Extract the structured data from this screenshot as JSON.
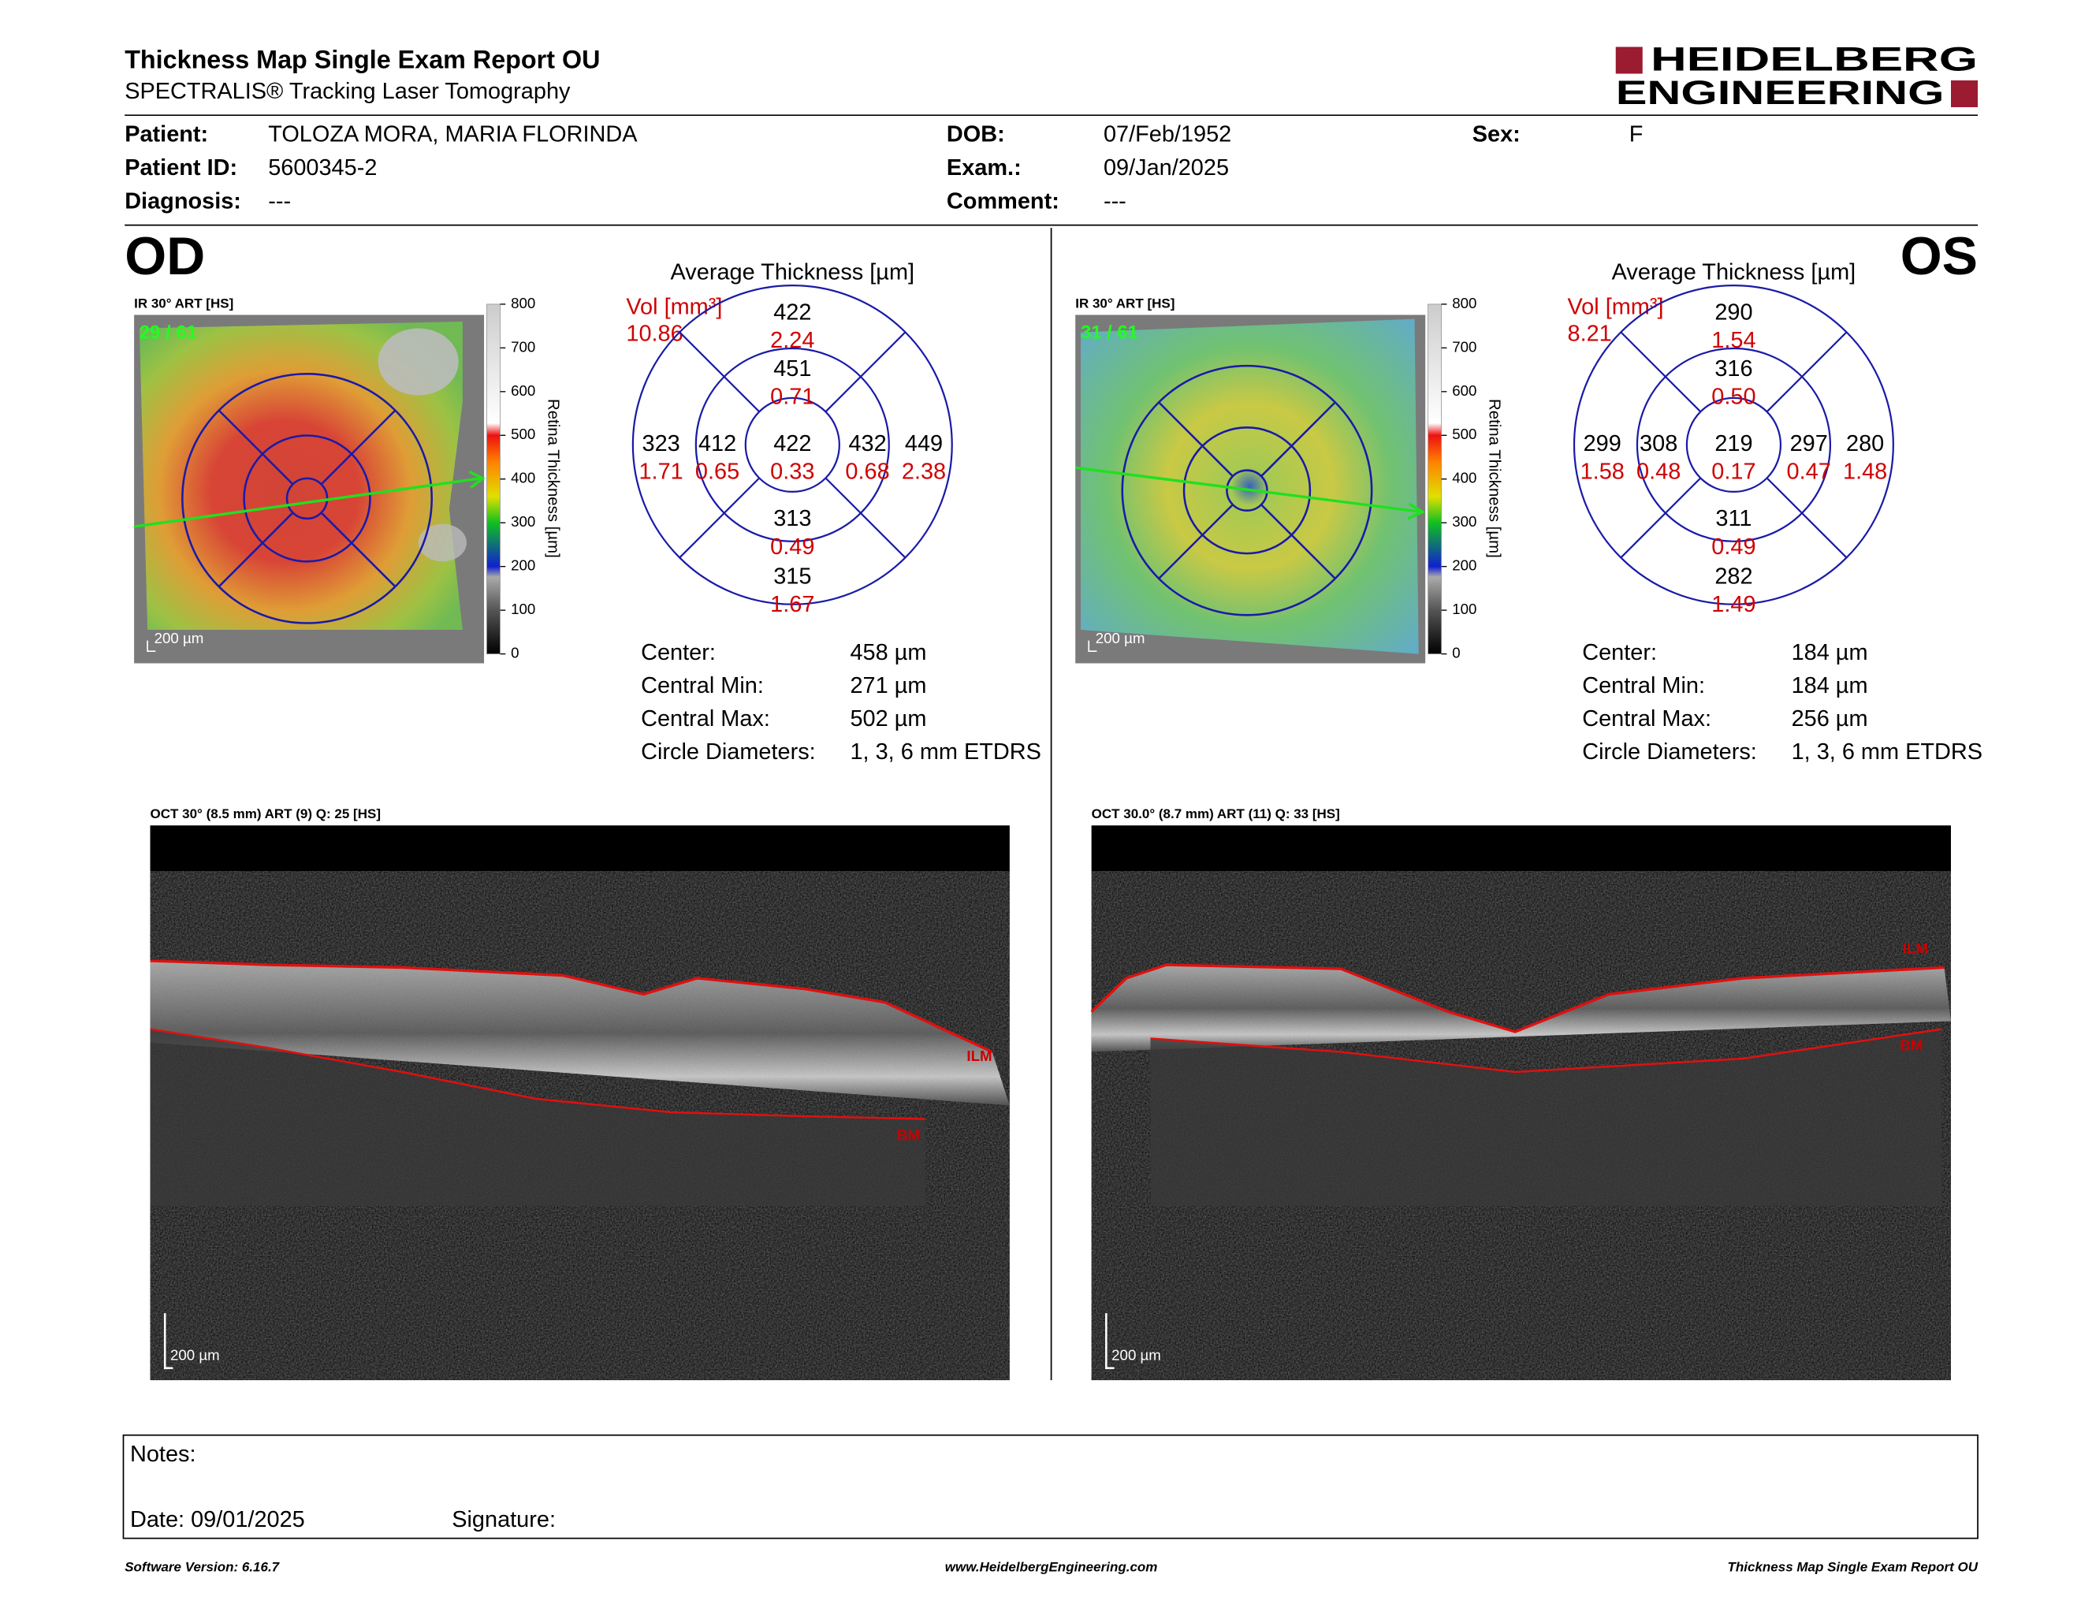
{
  "header": {
    "title": "Thickness Map Single Exam Report OU",
    "subtitle": "SPECTRALIS® Tracking Laser Tomography",
    "logo": [
      "HEIDELBERG",
      "ENGINEERING"
    ]
  },
  "patient": {
    "fields": [
      {
        "label": "Patient:",
        "value": "TOLOZA MORA, MARIA FLORINDA"
      },
      {
        "label": "Patient ID:",
        "value": "5600345-2"
      },
      {
        "label": "Diagnosis:",
        "value": "---"
      },
      {
        "label": "DOB:",
        "value": "07/Feb/1952"
      },
      {
        "label": "Exam.:",
        "value": "09/Jan/2025"
      },
      {
        "label": "Comment:",
        "value": "---"
      },
      {
        "label": "Sex:",
        "value": "F"
      }
    ]
  },
  "eyes": [
    {
      "name": "OD",
      "ir_label": "IR 30° ART [HS]",
      "frame": "29 / 61",
      "scale": "200 µm",
      "colorbar_ticks": [
        "800",
        "700",
        "600",
        "500",
        "400",
        "300",
        "200",
        "100",
        "0"
      ],
      "colorbar_title": "Retina Thickness [µm]",
      "avg_title": "Average Thickness [µm]",
      "vol_label": "Vol [mm³]",
      "vol_value": "10.86",
      "sectors": [
        {
          "thickness": "422",
          "volume": "2.24"
        },
        {
          "thickness": "451",
          "volume": "0.71"
        },
        {
          "thickness": "323",
          "volume": "1.71"
        },
        {
          "thickness": "412",
          "volume": "0.65"
        },
        {
          "thickness": "422",
          "volume": "0.33"
        },
        {
          "thickness": "432",
          "volume": "0.68"
        },
        {
          "thickness": "449",
          "volume": "2.38"
        },
        {
          "thickness": "313",
          "volume": "0.49"
        },
        {
          "thickness": "315",
          "volume": "1.67"
        }
      ],
      "stats": [
        {
          "label": "Center:",
          "value": "458 µm"
        },
        {
          "label": "Central Min:",
          "value": "271 µm"
        },
        {
          "label": "Central Max:",
          "value": "502 µm"
        },
        {
          "label": "Circle Diameters:",
          "value": "1, 3, 6 mm ETDRS"
        }
      ],
      "oct": {
        "label": "OCT 30° (8.5 mm) ART (9) Q: 25 [HS]",
        "ilm": "ILM",
        "bm": "BM",
        "scale": "200 µm"
      }
    },
    {
      "name": "OS",
      "ir_label": "IR 30° ART [HS]",
      "frame": "31 / 61",
      "scale": "200 µm",
      "colorbar_ticks": [
        "800",
        "700",
        "600",
        "500",
        "400",
        "300",
        "200",
        "100",
        "0"
      ],
      "colorbar_title": "Retina Thickness [µm]",
      "avg_title": "Average Thickness [µm]",
      "vol_label": "Vol [mm³]",
      "vol_value": "8.21",
      "sectors": [
        {
          "thickness": "290",
          "volume": "1.54"
        },
        {
          "thickness": "316",
          "volume": "0.50"
        },
        {
          "thickness": "299",
          "volume": "1.58"
        },
        {
          "thickness": "308",
          "volume": "0.48"
        },
        {
          "thickness": "219",
          "volume": "0.17"
        },
        {
          "thickness": "297",
          "volume": "0.47"
        },
        {
          "thickness": "280",
          "volume": "1.48"
        },
        {
          "thickness": "311",
          "volume": "0.49"
        },
        {
          "thickness": "282",
          "volume": "1.49"
        }
      ],
      "stats": [
        {
          "label": "Center:",
          "value": "184 µm"
        },
        {
          "label": "Central Min:",
          "value": "184 µm"
        },
        {
          "label": "Central Max:",
          "value": "256 µm"
        },
        {
          "label": "Circle Diameters:",
          "value": "1, 3, 6 mm ETDRS"
        }
      ],
      "oct": {
        "label": "OCT 30.0° (8.7 mm) ART (11) Q: 33 [HS]",
        "ilm": "ILM",
        "bm": "BM",
        "scale": "200 µm"
      }
    }
  ],
  "notes": {
    "label": "Notes:",
    "date": "Date: 09/01/2025",
    "signature": "Signature:"
  },
  "footer": {
    "left": "Software Version: 6.16.7",
    "center": "www.HeidelbergEngineering.com",
    "right": "Thickness Map Single Exam Report OU"
  }
}
